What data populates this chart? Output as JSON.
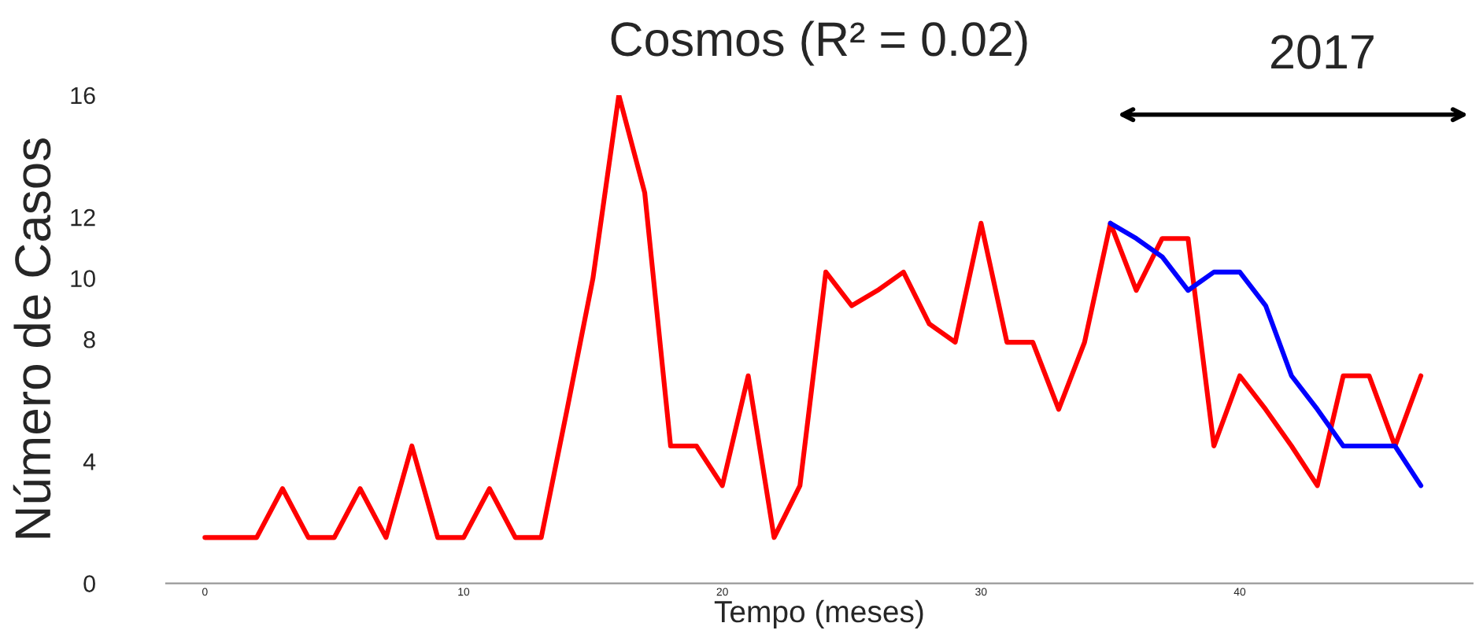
{
  "chart_data": {
    "type": "line",
    "title": "Cosmos (R² = 0.02)",
    "xlabel": "Tempo (meses)",
    "ylabel": "Número de Casos",
    "annotations": [
      "2017"
    ],
    "xlim": [
      -1.5,
      49
    ],
    "xticks": [
      0,
      10,
      20,
      30,
      40
    ],
    "ylim": [
      0,
      16
    ],
    "yticks": [
      0,
      4,
      8,
      10,
      12,
      16
    ],
    "grid": false,
    "legend": false,
    "marker": "none",
    "line_style": "solid",
    "series": [
      {
        "color": "#ff0000",
        "x": [
          0,
          1,
          2,
          3,
          4,
          5,
          6,
          7,
          8,
          9,
          10,
          11,
          12,
          13,
          14,
          15,
          16,
          17,
          18,
          19,
          20,
          21,
          22,
          23,
          24,
          25,
          26,
          27,
          28,
          29,
          30,
          31,
          32,
          33,
          34,
          35,
          36,
          37,
          38,
          39,
          40,
          41,
          42,
          43,
          44,
          45,
          46,
          47
        ],
        "values": [
          1.5,
          1.5,
          1.5,
          3.1,
          1.5,
          1.5,
          3.1,
          1.5,
          4.5,
          1.5,
          1.5,
          3.1,
          1.5,
          1.5,
          5.7,
          10,
          16,
          12.8,
          4.5,
          4.5,
          3.2,
          6.8,
          1.5,
          3.2,
          10.2,
          9.1,
          9.6,
          10.2,
          8.5,
          7.9,
          11.8,
          7.9,
          7.9,
          5.7,
          7.9,
          11.8,
          9.6,
          11.3,
          11.3,
          4.5,
          6.8,
          5.7,
          4.5,
          3.2,
          6.8,
          6.8,
          4.5,
          6.8
        ]
      },
      {
        "color": "#0000ff",
        "x": [
          35,
          36,
          37,
          38,
          39,
          40,
          41,
          42,
          43,
          44,
          45,
          46,
          47
        ],
        "values": [
          11.8,
          11.3,
          10.7,
          9.6,
          10.2,
          10.2,
          9.1,
          6.8,
          5.7,
          4.5,
          4.5,
          4.5,
          3.2
        ]
      }
    ]
  }
}
